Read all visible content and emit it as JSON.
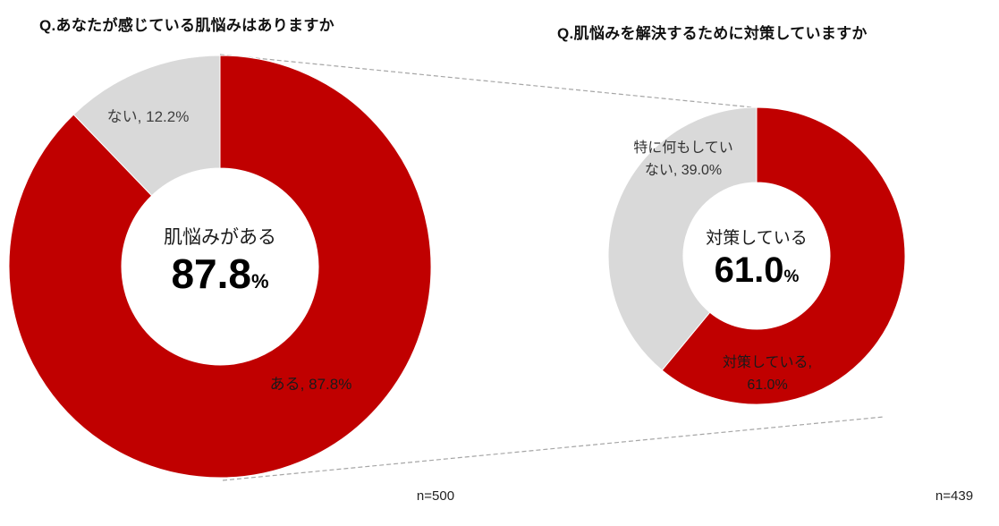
{
  "colors": {
    "primary_red": "#c00000",
    "neutral_gray": "#d9d9d9",
    "connector_gray": "#a6a6a6"
  },
  "chart_data": [
    {
      "type": "pie",
      "variant": "donut",
      "title": "Q.あなたが感じている肌悩みはありますか",
      "categories": [
        "ある",
        "ない"
      ],
      "values": [
        87.8,
        12.2
      ],
      "colors": [
        "#c00000",
        "#d9d9d9"
      ],
      "start_angle_deg": 0,
      "direction": "clockwise",
      "slice_labels": {
        "yes": "ある, 87.8%",
        "no": "ない, 12.2%"
      },
      "center": {
        "label": "肌悩みがある",
        "value": "87.8",
        "unit": "%"
      },
      "sample_size": "n=500",
      "legend": "none"
    },
    {
      "type": "pie",
      "variant": "donut",
      "title": "Q.肌悩みを解決するために対策していますか",
      "categories": [
        "対策している",
        "特に何もしていない"
      ],
      "values": [
        61.0,
        39.0
      ],
      "colors": [
        "#c00000",
        "#d9d9d9"
      ],
      "start_angle_deg": 0,
      "direction": "clockwise",
      "slice_labels": {
        "yes_line1": "対策している,",
        "yes_line2": "61.0%",
        "no_line1": "特に何もしてい",
        "no_line2": "ない, 39.0%"
      },
      "center": {
        "label": "対策している",
        "value": "61.0",
        "unit": "%"
      },
      "sample_size": "n=439",
      "legend": "none"
    }
  ]
}
